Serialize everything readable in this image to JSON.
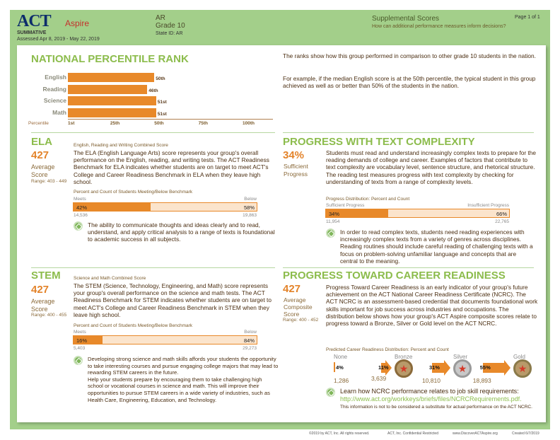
{
  "header": {
    "logo": "ACT Aspire",
    "summative": "SUMMATIVE",
    "assessed": "Assessed Apr 8, 2019 - May 22, 2019",
    "state": "AR",
    "grade": "Grade 10",
    "state_id": "State ID: AR",
    "title": "Supplemental Scores",
    "subtitle": "How can additional performance measures inform decisions?",
    "page": "Page 1 of 1"
  },
  "npr": {
    "title": "NATIONAL PERCENTILE RANK",
    "desc1": "The ranks show how this group performed in comparison to other grade 10 students in the nation.",
    "desc2": "For example, if the median English score is at the 50th percentile, the typical student in this group achieved as well as or better than 50% of the students in the nation.",
    "chart_data": {
      "type": "bar",
      "orientation": "horizontal",
      "categories": [
        "English",
        "Reading",
        "Science",
        "Math"
      ],
      "values": [
        50,
        46,
        51,
        51
      ],
      "value_labels": [
        "50th",
        "46th",
        "51st",
        "51st"
      ],
      "xlabel": "Percentile",
      "xticks": [
        "1st",
        "25th",
        "50th",
        "75th",
        "100th"
      ],
      "xlim": [
        1,
        100
      ],
      "color": "#e8892a"
    }
  },
  "ela": {
    "title": "ELA",
    "score": "427",
    "score_label1": "Average",
    "score_label2": "Score",
    "range": "Range: 403 - 449",
    "subtitle": "English, Reading and Writing Combined Score",
    "desc": "The ELA (English Language Arts) score represents your group's overall performance on the English, reading, and writing tests. The ACT Readiness Benchmark for ELA indicates whether students are on target to meet ACT's College and Career Readiness Benchmark in ELA when they leave high school.",
    "bar_title": "Percent and Count of Students Meeting/Below Benchmark",
    "left_label": "Meets",
    "right_label": "Below",
    "left_pct": 42,
    "left_pct_text": "42%",
    "right_pct_text": "58%",
    "left_count": "14,536",
    "right_count": "19,863",
    "tip": "The ability to communicate thoughts and ideas clearly and to read, understand, and apply critical analysis to a range of texts is foundational to academic success in all subjects."
  },
  "stem": {
    "title": "STEM",
    "score": "427",
    "score_label1": "Average",
    "score_label2": "Score",
    "range": "Range: 400 - 455",
    "subtitle": "Science and Math Combined Score",
    "desc": "The STEM (Science, Technology, Engineering, and Math) score represents your group's overall performance on the science and math tests. The ACT Readiness Benchmark for STEM indicates whether students are on target to meet ACT's College and Career Readiness Benchmark in STEM when they leave high school.",
    "bar_title": "Percent and Count of Students Meeting/Below Benchmark",
    "left_label": "Meets",
    "right_label": "Below",
    "left_pct": 16,
    "left_pct_text": "16%",
    "right_pct_text": "84%",
    "left_count": "5,403",
    "right_count": "29,273",
    "tip": "Developing strong science and math skills affords your students the opportunity to take interesting courses and pursue engaging college majors that may lead to rewarding STEM careers in the future.\nHelp your students prepare by encouraging them to take challenging high school or vocational courses in science and math. This will improve their opportunities to pursue STEM careers in a wide variety of industries, such as Health Care, Engineering, Education, and Technology."
  },
  "ptc": {
    "title": "PROGRESS WITH TEXT COMPLEXITY",
    "score": "34%",
    "score_label1": "Sufficient",
    "score_label2": "Progress",
    "desc": "Students must read and understand increasingly complex texts to prepare for the reading demands of college and career. Examples of factors that contribute to text complexity are vocabulary level, sentence structure, and rhetorical structure. The reading test measures progress with text complexity by checking for understanding of texts from a range of complexity levels.",
    "bar_title": "Progress Distribution: Percent and Count",
    "left_label": "Sufficient Progress",
    "right_label": "Insufficient Progress",
    "left_pct": 34,
    "left_pct_text": "34%",
    "right_pct_text": "66%",
    "left_count": "11,954",
    "right_count": "22,765",
    "tip": "In order to read complex texts, students need reading experiences with increasingly complex texts from a variety of genres across disciplines. Reading routines should include careful reading of challenging texts with a focus on problem-solving unfamiliar language and concepts that are central to the meaning."
  },
  "ptcr": {
    "title": "PROGRESS TOWARD CAREER READINESS",
    "score": "427",
    "score_label1": "Average",
    "score_label2": "Composite",
    "score_label3": "Score",
    "range": "Range: 400 - 452",
    "desc": "Progress Toward Career Readiness is an early indicator of your group's future achievement on the ACT National Career Readiness Certificate (NCRC). The ACT NCRC is an assessment-based credential that documents foundational work skills important for job success across industries and occupations. The distribution below shows how your group's ACT Aspire composite scores relate to progress toward a Bronze, Silver or Gold level on the ACT NCRC.",
    "dist_title": "Predicted Career Readiness Distribution: Percent and Count",
    "levels": [
      {
        "name": "None",
        "pct": 4,
        "pct_text": "4%",
        "count": "1,286"
      },
      {
        "name": "Bronze",
        "pct": 11,
        "pct_text": "11%",
        "count": "3,639"
      },
      {
        "name": "Silver",
        "pct": 31,
        "pct_text": "31%",
        "count": "10,810"
      },
      {
        "name": "Gold",
        "pct": 55,
        "pct_text": "55%",
        "count": "18,893"
      }
    ],
    "tip": "Learn how NCRC performance relates to job skill requirements:",
    "link": "http://www.act.org/workkeys/briefs/files/NCRCRequirements.pdf.",
    "disclaimer": "This information is not to be considered a substitute for actual performance on the ACT NCRC."
  },
  "footer": {
    "copyright": "©2019 by ACT, Inc. All rights reserved.",
    "confidential": "ACT, Inc. Confidential Restricted",
    "url": "www.DiscoverACTAspire.org",
    "created": "Created 6/7/2019"
  },
  "colors": {
    "green_bg": "#a3cf8a",
    "heading_green": "#8cbc4c",
    "orange": "#e8892a",
    "navy": "#0d2d6b"
  }
}
